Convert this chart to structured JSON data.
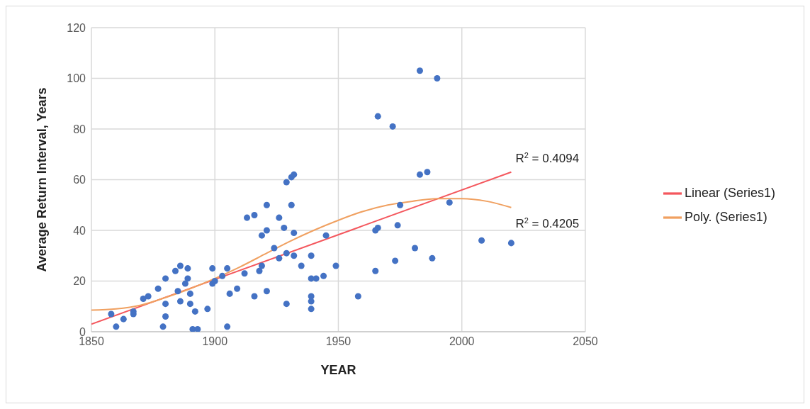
{
  "chart_data": {
    "type": "scatter",
    "xlabel": "YEAR",
    "ylabel": "Average Return Interval, Years",
    "xlim": [
      1850,
      2050
    ],
    "xticks": [
      1850,
      1900,
      1950,
      2000,
      2050
    ],
    "ylim": [
      0,
      120
    ],
    "yticks": [
      0,
      20,
      40,
      60,
      80,
      100,
      120
    ],
    "grid": true,
    "legend": "right",
    "series": [
      {
        "color": "#4472c4",
        "marker": "circle",
        "x": [
          1858,
          1860,
          1863,
          1867,
          1867,
          1871,
          1873,
          1877,
          1880,
          1880,
          1880,
          1879,
          1884,
          1886,
          1889,
          1885,
          1886,
          1888,
          1889,
          1890,
          1890,
          1892,
          1891,
          1893,
          1897,
          1899,
          1899,
          1900,
          1903,
          1905,
          1906,
          1905,
          1909,
          1912,
          1913,
          1916,
          1916,
          1918,
          1919,
          1919,
          1921,
          1921,
          1921,
          1924,
          1926,
          1928,
          1926,
          1929,
          1931,
          1932,
          1931,
          1932,
          1932,
          1929,
          1929,
          1935,
          1939,
          1939,
          1941,
          1944,
          1945,
          1939,
          1939,
          1939,
          1949,
          1958,
          1966,
          1972,
          1965,
          1965,
          1966,
          1975,
          1974,
          1973,
          1981,
          1988,
          1983,
          1990,
          1983,
          1986,
          1995,
          2008,
          2020
        ],
        "values": [
          7,
          2,
          5,
          8,
          7,
          13,
          14,
          17,
          21,
          11,
          6,
          2,
          24,
          26,
          25,
          16,
          12,
          19,
          21,
          15,
          11,
          8,
          1,
          1,
          9,
          19,
          25,
          20,
          22,
          25,
          15,
          2,
          17,
          23,
          45,
          46,
          14,
          24,
          26,
          38,
          40,
          50,
          16,
          33,
          45,
          41,
          29,
          59,
          61,
          62,
          50,
          39,
          30,
          31,
          11,
          26,
          21,
          30,
          21,
          22,
          38,
          14,
          12,
          9,
          26,
          14,
          85,
          81,
          24,
          40,
          41,
          50,
          42,
          28,
          33,
          29,
          103,
          100,
          62,
          63,
          51,
          36,
          35
        ]
      },
      {
        "type": "line",
        "name": "Linear (Series1)",
        "color": "#f4575d",
        "marker": "none",
        "line_style": "solid",
        "x": [
          1850,
          2020
        ],
        "values": [
          3,
          63
        ]
      },
      {
        "type": "line",
        "name": "Poly. (Series1)",
        "color": "#f0a060",
        "marker": "none",
        "line_style": "solid",
        "x": [
          1850,
          1860,
          1870,
          1880,
          1890,
          1900,
          1910,
          1920,
          1930,
          1940,
          1950,
          1960,
          1970,
          1980,
          1990,
          2000,
          2010,
          2020
        ],
        "values": [
          8.5,
          9,
          10.5,
          13.5,
          17,
          21,
          25.5,
          30.5,
          35.5,
          40,
          44,
          47.5,
          50,
          51.5,
          52.5,
          52.5,
          51.5,
          49
        ]
      }
    ],
    "annotations": [
      "R$^{2}$ = 0.4094",
      "R$^{2}$ = 0.4205"
    ]
  }
}
